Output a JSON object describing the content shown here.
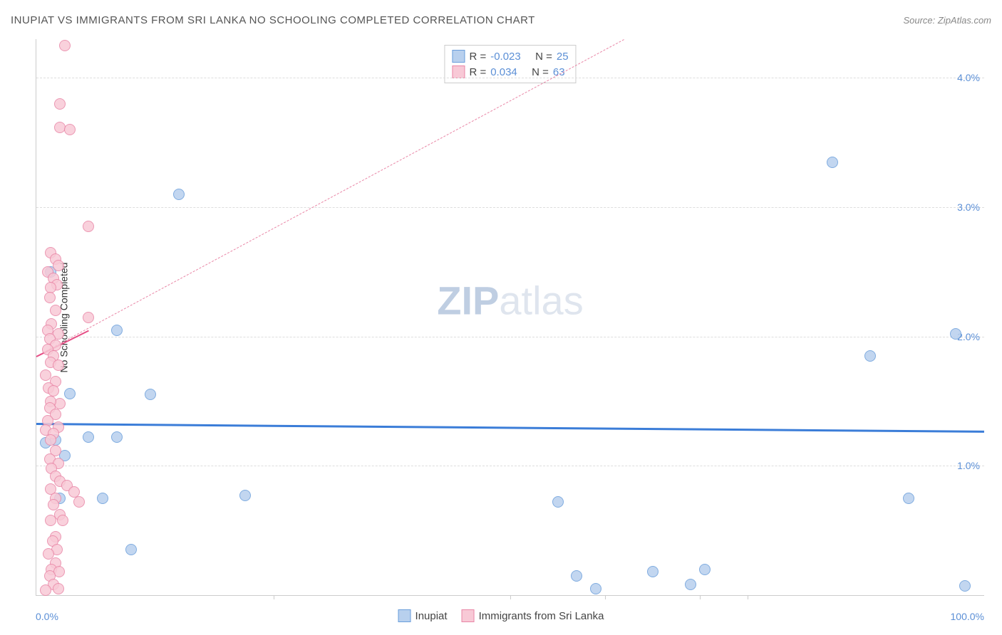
{
  "title": "INUPIAT VS IMMIGRANTS FROM SRI LANKA NO SCHOOLING COMPLETED CORRELATION CHART",
  "source": "Source: ZipAtlas.com",
  "watermark_bold": "ZIP",
  "watermark_rest": "atlas",
  "chart": {
    "type": "scatter",
    "ylabel": "No Schooling Completed",
    "xlim": [
      0,
      100
    ],
    "ylim": [
      0,
      4.3
    ],
    "x_tick_left": "0.0%",
    "x_tick_right": "100.0%",
    "y_ticks": [
      {
        "v": 1.0,
        "label": "1.0%"
      },
      {
        "v": 2.0,
        "label": "2.0%"
      },
      {
        "v": 3.0,
        "label": "3.0%"
      },
      {
        "v": 4.0,
        "label": "4.0%"
      }
    ],
    "x_tick_marks": [
      25,
      50,
      60,
      70,
      75
    ],
    "background_color": "#ffffff",
    "grid_color": "#dddddd",
    "series": [
      {
        "name": "Inupiat",
        "marker_color": "#b8d0ee",
        "marker_border": "#6a9edb",
        "marker_radius": 8,
        "trend": {
          "y1": 1.33,
          "y2": 1.27,
          "color": "#3b7dd8",
          "width": 3,
          "dash": false
        },
        "R": "-0.023",
        "N": "25",
        "points": [
          {
            "x": 1.5,
            "y": 2.5
          },
          {
            "x": 15,
            "y": 3.1
          },
          {
            "x": 8.5,
            "y": 2.05
          },
          {
            "x": 3.5,
            "y": 1.56
          },
          {
            "x": 12,
            "y": 1.55
          },
          {
            "x": 2,
            "y": 1.2
          },
          {
            "x": 5.5,
            "y": 1.22
          },
          {
            "x": 8.5,
            "y": 1.22
          },
          {
            "x": 3,
            "y": 1.08
          },
          {
            "x": 2.5,
            "y": 0.75
          },
          {
            "x": 7,
            "y": 0.75
          },
          {
            "x": 22,
            "y": 0.77
          },
          {
            "x": 10,
            "y": 0.35
          },
          {
            "x": 55,
            "y": 0.72
          },
          {
            "x": 57,
            "y": 0.15
          },
          {
            "x": 59,
            "y": 0.05
          },
          {
            "x": 65,
            "y": 0.18
          },
          {
            "x": 70.5,
            "y": 0.2
          },
          {
            "x": 69,
            "y": 0.08
          },
          {
            "x": 84,
            "y": 3.35
          },
          {
            "x": 88,
            "y": 1.85
          },
          {
            "x": 92,
            "y": 0.75
          },
          {
            "x": 97,
            "y": 2.02
          },
          {
            "x": 98,
            "y": 0.07
          },
          {
            "x": 1,
            "y": 1.18
          }
        ]
      },
      {
        "name": "Immigrants from Sri Lanka",
        "marker_color": "#f8c9d6",
        "marker_border": "#e986a6",
        "marker_radius": 8,
        "trend": {
          "y1": 1.85,
          "y2": 4.3,
          "x2_frac": 0.62,
          "color": "#e986a6",
          "width": 1,
          "dash": true
        },
        "trend_solid": {
          "y1": 1.85,
          "y2": 2.05,
          "x2_frac": 0.055,
          "color": "#e64d85",
          "width": 2
        },
        "R": "0.034",
        "N": "63",
        "points": [
          {
            "x": 3,
            "y": 4.25
          },
          {
            "x": 2.5,
            "y": 3.8
          },
          {
            "x": 2.5,
            "y": 3.62
          },
          {
            "x": 3.5,
            "y": 3.6
          },
          {
            "x": 5.5,
            "y": 2.85
          },
          {
            "x": 1.5,
            "y": 2.65
          },
          {
            "x": 2,
            "y": 2.6
          },
          {
            "x": 2.3,
            "y": 2.55
          },
          {
            "x": 1.2,
            "y": 2.5
          },
          {
            "x": 1.8,
            "y": 2.45
          },
          {
            "x": 2.2,
            "y": 2.4
          },
          {
            "x": 1.5,
            "y": 2.38
          },
          {
            "x": 1.4,
            "y": 2.3
          },
          {
            "x": 2,
            "y": 2.2
          },
          {
            "x": 5.5,
            "y": 2.15
          },
          {
            "x": 1.6,
            "y": 2.1
          },
          {
            "x": 1.2,
            "y": 2.05
          },
          {
            "x": 2.3,
            "y": 2.02
          },
          {
            "x": 1.4,
            "y": 1.98
          },
          {
            "x": 2,
            "y": 1.93
          },
          {
            "x": 1.2,
            "y": 1.9
          },
          {
            "x": 1.8,
            "y": 1.85
          },
          {
            "x": 1.5,
            "y": 1.8
          },
          {
            "x": 2.3,
            "y": 1.78
          },
          {
            "x": 1,
            "y": 1.7
          },
          {
            "x": 2,
            "y": 1.65
          },
          {
            "x": 1.3,
            "y": 1.6
          },
          {
            "x": 1.8,
            "y": 1.58
          },
          {
            "x": 2.5,
            "y": 1.48
          },
          {
            "x": 1.5,
            "y": 1.5
          },
          {
            "x": 1.4,
            "y": 1.45
          },
          {
            "x": 2,
            "y": 1.4
          },
          {
            "x": 1.2,
            "y": 1.35
          },
          {
            "x": 2.3,
            "y": 1.3
          },
          {
            "x": 1,
            "y": 1.28
          },
          {
            "x": 1.8,
            "y": 1.25
          },
          {
            "x": 1.5,
            "y": 1.2
          },
          {
            "x": 2,
            "y": 1.12
          },
          {
            "x": 1.4,
            "y": 1.05
          },
          {
            "x": 2.3,
            "y": 1.02
          },
          {
            "x": 1.6,
            "y": 0.98
          },
          {
            "x": 2,
            "y": 0.92
          },
          {
            "x": 2.5,
            "y": 0.88
          },
          {
            "x": 3.2,
            "y": 0.85
          },
          {
            "x": 1.5,
            "y": 0.82
          },
          {
            "x": 4,
            "y": 0.8
          },
          {
            "x": 2,
            "y": 0.75
          },
          {
            "x": 4.5,
            "y": 0.72
          },
          {
            "x": 1.8,
            "y": 0.7
          },
          {
            "x": 2.5,
            "y": 0.62
          },
          {
            "x": 1.5,
            "y": 0.58
          },
          {
            "x": 2.8,
            "y": 0.58
          },
          {
            "x": 2,
            "y": 0.45
          },
          {
            "x": 1.7,
            "y": 0.42
          },
          {
            "x": 2.2,
            "y": 0.35
          },
          {
            "x": 1.3,
            "y": 0.32
          },
          {
            "x": 2,
            "y": 0.25
          },
          {
            "x": 1.6,
            "y": 0.2
          },
          {
            "x": 2.4,
            "y": 0.18
          },
          {
            "x": 1.4,
            "y": 0.15
          },
          {
            "x": 1.8,
            "y": 0.08
          },
          {
            "x": 2.3,
            "y": 0.05
          },
          {
            "x": 1,
            "y": 0.04
          }
        ]
      }
    ]
  },
  "legend_top": {
    "R_label": "R =",
    "N_label": "N ="
  },
  "legend_bottom": {
    "series1": "Inupiat",
    "series2": "Immigrants from Sri Lanka"
  }
}
